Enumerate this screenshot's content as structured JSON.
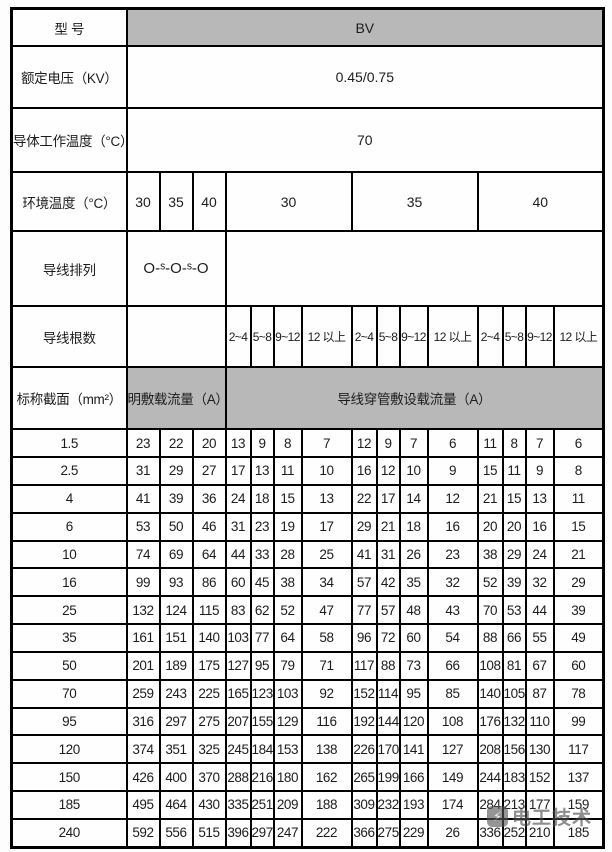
{
  "colors": {
    "header_grey": "#b8b8b8",
    "border": "#000000",
    "text": "#1c1c1c",
    "watermark_grey": "#4a4a4a"
  },
  "table": {
    "spec": {
      "model_label": "型 号",
      "model_value": "BV",
      "voltage_label": "额定电压（KV）",
      "voltage_value": "0.45/0.75",
      "conductor_temp_label": "导体工作温度（°C）",
      "conductor_temp_value": "70",
      "ambient_label": "环境温度（°C）",
      "ambient_open": [
        "30",
        "35",
        "40"
      ],
      "ambient_conduit": [
        "30",
        "35",
        "40"
      ],
      "arrangement_label": "导线排列",
      "arrangement_value": "O-ˢ-O-ˢ-O",
      "wire_count_label": "导线根数",
      "wire_counts": [
        "2~4",
        "5~8",
        "9~12",
        "12 以上",
        "2~4",
        "5~8",
        "9~12",
        "12 以上",
        "2~4",
        "5~8",
        "9~12",
        "12 以上"
      ],
      "section_label": "标称截面（mm²）",
      "open_header": "明敷载流量（A）",
      "conduit_header": "导线穿管敷设载流量（A）"
    }
  },
  "chart_data": {
    "type": "table",
    "columns": [
      "标称截面（mm²）",
      "明敷30",
      "明敷35",
      "明敷40",
      "穿管30/2~4",
      "穿管30/5~8",
      "穿管30/9~12",
      "穿管30/12以上",
      "穿管35/2~4",
      "穿管35/5~8",
      "穿管35/9~12",
      "穿管35/12以上",
      "穿管40/2~4",
      "穿管40/5~8",
      "穿管40/9~12",
      "穿管40/12以上"
    ],
    "rows": [
      {
        "section": "1.5",
        "values": [
          23,
          22,
          20,
          13,
          9,
          8,
          7,
          12,
          9,
          7,
          6,
          11,
          8,
          7,
          6
        ]
      },
      {
        "section": "2.5",
        "values": [
          31,
          29,
          27,
          17,
          13,
          11,
          10,
          16,
          12,
          10,
          9,
          15,
          11,
          9,
          8
        ]
      },
      {
        "section": "4",
        "values": [
          41,
          39,
          36,
          24,
          18,
          15,
          13,
          22,
          17,
          14,
          12,
          21,
          15,
          13,
          11
        ]
      },
      {
        "section": "6",
        "values": [
          53,
          50,
          46,
          31,
          23,
          19,
          17,
          29,
          21,
          18,
          16,
          20,
          20,
          16,
          15
        ]
      },
      {
        "section": "10",
        "values": [
          74,
          69,
          64,
          44,
          33,
          28,
          25,
          41,
          31,
          26,
          23,
          38,
          29,
          24,
          21
        ]
      },
      {
        "section": "16",
        "values": [
          99,
          93,
          86,
          60,
          45,
          38,
          34,
          57,
          42,
          35,
          32,
          52,
          39,
          32,
          29
        ]
      },
      {
        "section": "25",
        "values": [
          132,
          124,
          115,
          83,
          62,
          52,
          47,
          77,
          57,
          48,
          43,
          70,
          53,
          44,
          39
        ]
      },
      {
        "section": "35",
        "values": [
          161,
          151,
          140,
          103,
          77,
          64,
          58,
          96,
          72,
          60,
          54,
          88,
          66,
          55,
          49
        ]
      },
      {
        "section": "50",
        "values": [
          201,
          189,
          175,
          127,
          95,
          79,
          71,
          117,
          88,
          73,
          66,
          108,
          81,
          67,
          60
        ]
      },
      {
        "section": "70",
        "values": [
          259,
          243,
          225,
          165,
          123,
          103,
          92,
          152,
          114,
          95,
          85,
          140,
          105,
          87,
          78
        ]
      },
      {
        "section": "95",
        "values": [
          316,
          297,
          275,
          207,
          155,
          129,
          116,
          192,
          144,
          120,
          108,
          176,
          132,
          110,
          99
        ]
      },
      {
        "section": "120",
        "values": [
          374,
          351,
          325,
          245,
          184,
          153,
          138,
          226,
          170,
          141,
          127,
          208,
          156,
          130,
          117
        ]
      },
      {
        "section": "150",
        "values": [
          426,
          400,
          370,
          288,
          216,
          180,
          162,
          265,
          199,
          166,
          149,
          244,
          183,
          152,
          137
        ]
      },
      {
        "section": "185",
        "values": [
          495,
          464,
          430,
          335,
          251,
          209,
          188,
          309,
          232,
          193,
          174,
          284,
          213,
          177,
          159
        ]
      },
      {
        "section": "240",
        "values": [
          592,
          556,
          515,
          396,
          297,
          247,
          222,
          366,
          275,
          229,
          26,
          336,
          252,
          210,
          185
        ]
      }
    ]
  },
  "watermark": {
    "text": "电工技术",
    "icon": "lightning-logo-icon"
  }
}
